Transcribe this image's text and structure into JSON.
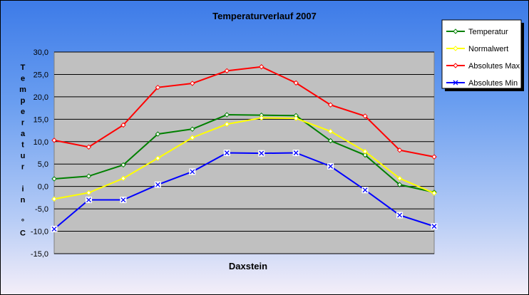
{
  "chart_data": {
    "type": "line",
    "title": "Temperaturverlauf  2007",
    "xlabel": "Daxstein",
    "ylabel": "Temperatur in °C",
    "ylabel_glyphs": [
      "T",
      "e",
      "m",
      "p",
      "e",
      "r",
      "a",
      "t",
      "u",
      "r",
      "",
      "i",
      "n",
      "",
      "°",
      "C"
    ],
    "ylim": [
      -15,
      30
    ],
    "yticks": [
      "-15,0",
      "-10,0",
      "-5,0",
      "0,0",
      "5,0",
      "10,0",
      "15,0",
      "20,0",
      "25,0",
      "30,0"
    ],
    "grid": true,
    "legend_position": "top-right",
    "plot_background": "#c0c0c0",
    "series": [
      {
        "name": "Temperatur",
        "color": "#008000",
        "marker": "diamond",
        "values": [
          1.7,
          2.3,
          4.8,
          11.7,
          12.8,
          16.0,
          15.9,
          15.8,
          10.2,
          7.0,
          0.4,
          -1.3
        ]
      },
      {
        "name": "Normalwert",
        "color": "#ffff00",
        "marker": "diamond",
        "values": [
          -2.8,
          -1.4,
          1.8,
          6.3,
          10.9,
          13.9,
          15.3,
          15.2,
          12.3,
          7.8,
          1.8,
          -1.5
        ]
      },
      {
        "name": "Absolutes Max",
        "color": "#ff0000",
        "marker": "diamond",
        "values": [
          10.3,
          8.8,
          13.7,
          22.1,
          23.0,
          25.8,
          26.7,
          23.1,
          18.2,
          15.7,
          8.1,
          6.6
        ]
      },
      {
        "name": "Absolutes Min",
        "color": "#0000ff",
        "marker": "x",
        "values": [
          -9.5,
          -3.0,
          -3.0,
          0.4,
          3.3,
          7.5,
          7.4,
          7.5,
          4.5,
          -0.8,
          -6.4,
          -8.9
        ]
      }
    ]
  }
}
